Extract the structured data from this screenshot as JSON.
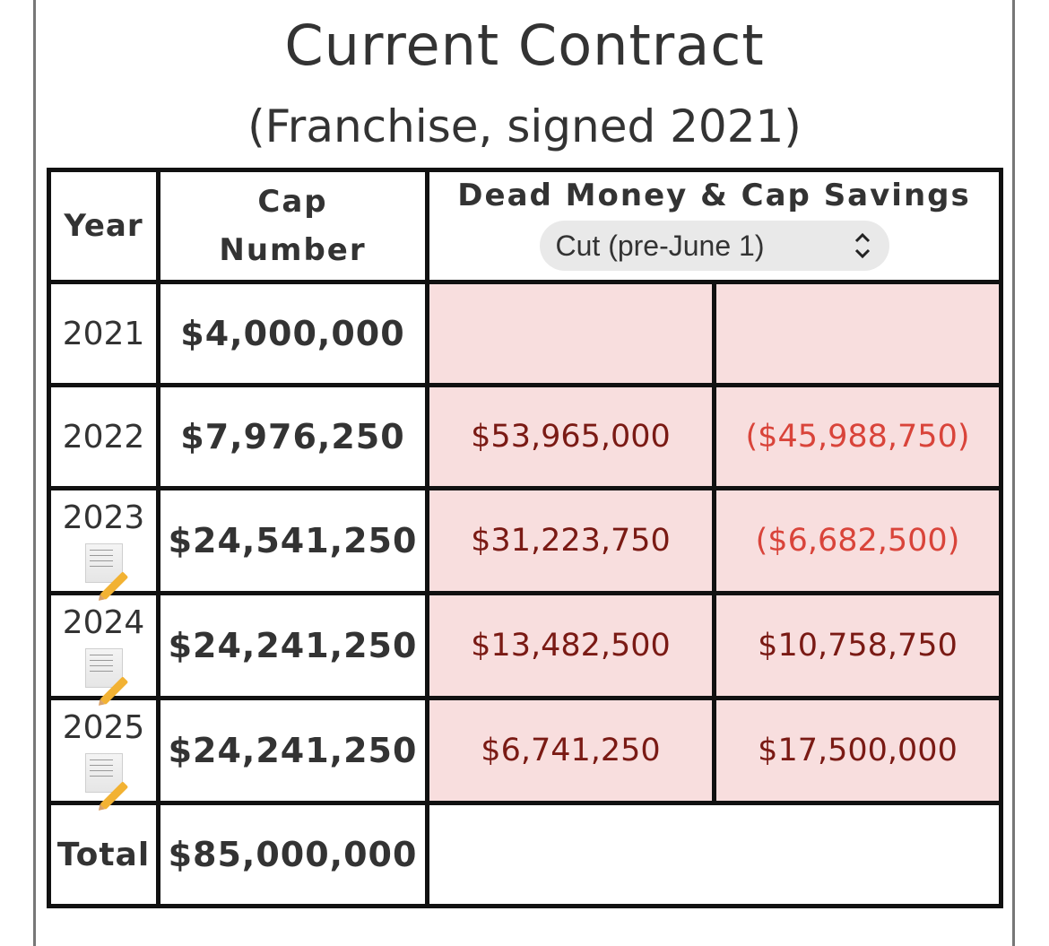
{
  "title": "Current Contract",
  "subtitle": "(Franchise, signed 2021)",
  "table": {
    "headers": {
      "year": "Year",
      "cap_line1": "Cap",
      "cap_line2": "Number",
      "dead_money": "Dead Money & Cap Savings"
    },
    "selector": {
      "value": "Cut (pre-June 1)",
      "icon": "chevron-up-down-icon"
    },
    "rows": [
      {
        "year": "2021",
        "cap": "$4,000,000",
        "dead": "",
        "savings": "",
        "note_icon": false
      },
      {
        "year": "2022",
        "cap": "$7,976,250",
        "dead": "$53,965,000",
        "savings": "($45,988,750)",
        "note_icon": false
      },
      {
        "year": "2023",
        "cap": "$24,541,250",
        "dead": "$31,223,750",
        "savings": "($6,682,500)",
        "note_icon": true
      },
      {
        "year": "2024",
        "cap": "$24,241,250",
        "dead": "$13,482,500",
        "savings": "$10,758,750",
        "note_icon": true
      },
      {
        "year": "2025",
        "cap": "$24,241,250",
        "dead": "$6,741,250",
        "savings": "$17,500,000",
        "note_icon": true
      }
    ],
    "total": {
      "label": "Total",
      "cap": "$85,000,000"
    }
  },
  "colors": {
    "dead_cell_bg": "#f8dede",
    "dead_text": "#7a1a14",
    "negative_savings_text": "#d9443a"
  }
}
